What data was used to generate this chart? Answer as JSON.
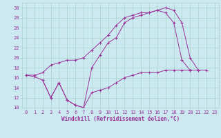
{
  "xlabel": "Windchill (Refroidissement éolien,°C)",
  "bg_color": "#cce8f0",
  "grid_color": "#aad4cc",
  "line_color": "#993399",
  "xlim": [
    -0.5,
    23.5
  ],
  "ylim": [
    10,
    31
  ],
  "xticks": [
    0,
    1,
    2,
    3,
    4,
    5,
    6,
    7,
    8,
    9,
    10,
    11,
    12,
    13,
    14,
    15,
    16,
    17,
    18,
    19,
    20,
    21,
    22,
    23
  ],
  "yticks": [
    10,
    12,
    14,
    16,
    18,
    20,
    22,
    24,
    26,
    28,
    30
  ],
  "s1_x": [
    0,
    1,
    2,
    3,
    4,
    5,
    6,
    7,
    8,
    9,
    10,
    11,
    12,
    13,
    14,
    15,
    16,
    17,
    18,
    19,
    20,
    21
  ],
  "s1_y": [
    16.5,
    16.2,
    15.5,
    12.0,
    15.0,
    11.5,
    10.5,
    10.0,
    18.0,
    20.5,
    23.0,
    24.0,
    27.0,
    28.0,
    28.5,
    29.0,
    29.5,
    30.0,
    29.5,
    27.0,
    20.0,
    17.5
  ],
  "s2_x": [
    2,
    3,
    4,
    5,
    6,
    7,
    8,
    9,
    10,
    11,
    12,
    13,
    14,
    15,
    16,
    17,
    18,
    19,
    20,
    21,
    22
  ],
  "s2_y": [
    15.5,
    12.0,
    15.0,
    11.5,
    10.5,
    10.0,
    13.0,
    13.5,
    14.0,
    15.0,
    16.0,
    16.5,
    17.0,
    17.0,
    17.0,
    17.5,
    17.5,
    17.5,
    17.5,
    17.5,
    17.5
  ],
  "s3_x": [
    0,
    1,
    2,
    3,
    4,
    5,
    6,
    7,
    8,
    9,
    10,
    11,
    12,
    13,
    14,
    15,
    16,
    17,
    18,
    19,
    20
  ],
  "s3_y": [
    16.5,
    16.5,
    17.0,
    18.5,
    19.0,
    19.5,
    19.5,
    20.0,
    21.5,
    23.0,
    24.5,
    26.5,
    28.0,
    28.5,
    29.0,
    29.0,
    29.5,
    29.0,
    27.0,
    19.5,
    17.5
  ],
  "tick_fontsize": 5.0,
  "xlabel_fontsize": 5.5,
  "marker_size": 3.5,
  "lw": 0.7
}
